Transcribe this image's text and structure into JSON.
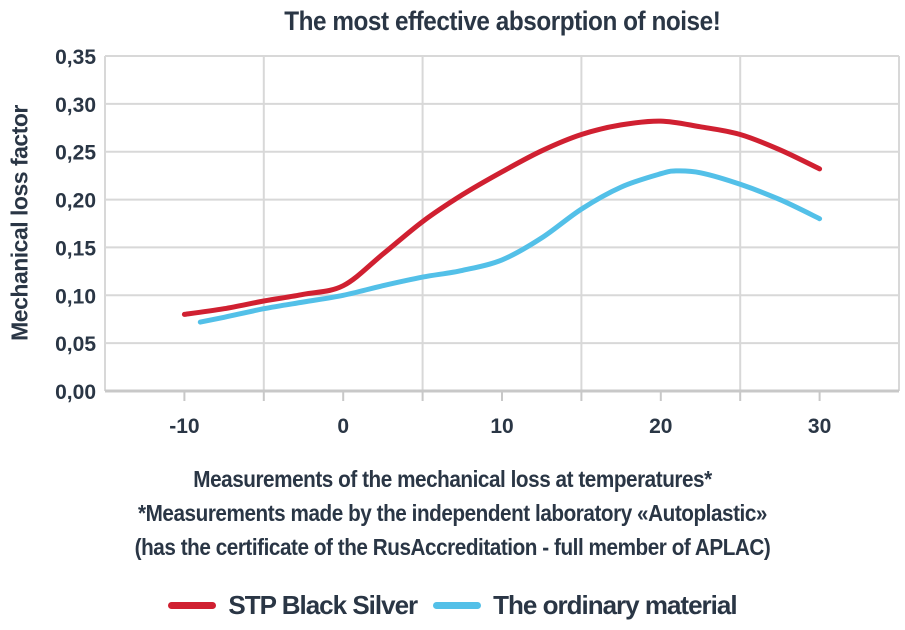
{
  "colors": {
    "background": "#ffffff",
    "text_navy": "#2a3645",
    "series_red": "#d02031",
    "series_blue": "#53c0e8",
    "gridline": "#d8d8d8",
    "axis": "#c8c8c8"
  },
  "chart_data": {
    "type": "line",
    "title": "The most effective absorption of noise!",
    "xlabel": "Measurements of the mechanical loss at temperatures*",
    "ylabel": "Mechanical loss factor",
    "annotations": [
      "*Measurements made by the independent laboratory «Autoplastic»",
      "(has the certificate of the RusAccreditation - full member of APLAC)"
    ],
    "xlim": [
      -15,
      35
    ],
    "ylim": [
      0,
      0.35
    ],
    "grid": true,
    "legend_position": "bottom",
    "xticks": {
      "values": [
        -10,
        0,
        10,
        20,
        30
      ],
      "labels": [
        "-10",
        "0",
        "10",
        "20",
        "30"
      ]
    },
    "x_minor_ticks": [
      -10,
      -5,
      0,
      5,
      10,
      15,
      20,
      25,
      30
    ],
    "x_gridlines": [
      -5,
      5,
      15,
      25
    ],
    "yticks": {
      "values": [
        0,
        0.05,
        0.1,
        0.15,
        0.2,
        0.25,
        0.3,
        0.35
      ],
      "labels": [
        "0,00",
        "0,05",
        "0,10",
        "0,15",
        "0,20",
        "0,25",
        "0,30",
        "0,35"
      ]
    },
    "series": [
      {
        "name": "STP Black Silver",
        "color": "#d02031",
        "points": [
          [
            -10,
            0.08
          ],
          [
            -7.5,
            0.086
          ],
          [
            -5,
            0.094
          ],
          [
            -2.5,
            0.101
          ],
          [
            0,
            0.11
          ],
          [
            2.5,
            0.143
          ],
          [
            5,
            0.177
          ],
          [
            7.5,
            0.205
          ],
          [
            10,
            0.229
          ],
          [
            12.5,
            0.251
          ],
          [
            15,
            0.268
          ],
          [
            17.5,
            0.278
          ],
          [
            20,
            0.282
          ],
          [
            22.5,
            0.276
          ],
          [
            25,
            0.268
          ],
          [
            27.5,
            0.252
          ],
          [
            30,
            0.232
          ]
        ]
      },
      {
        "name": "The ordinary material",
        "color": "#53c0e8",
        "points": [
          [
            -9,
            0.072
          ],
          [
            -7.5,
            0.077
          ],
          [
            -5,
            0.086
          ],
          [
            -2.5,
            0.093
          ],
          [
            0,
            0.1
          ],
          [
            2.5,
            0.11
          ],
          [
            5,
            0.119
          ],
          [
            7.5,
            0.126
          ],
          [
            10,
            0.137
          ],
          [
            12.5,
            0.16
          ],
          [
            15,
            0.19
          ],
          [
            17.5,
            0.213
          ],
          [
            20,
            0.227
          ],
          [
            21,
            0.23
          ],
          [
            22.5,
            0.228
          ],
          [
            25,
            0.216
          ],
          [
            27.5,
            0.2
          ],
          [
            30,
            0.18
          ]
        ]
      }
    ]
  }
}
